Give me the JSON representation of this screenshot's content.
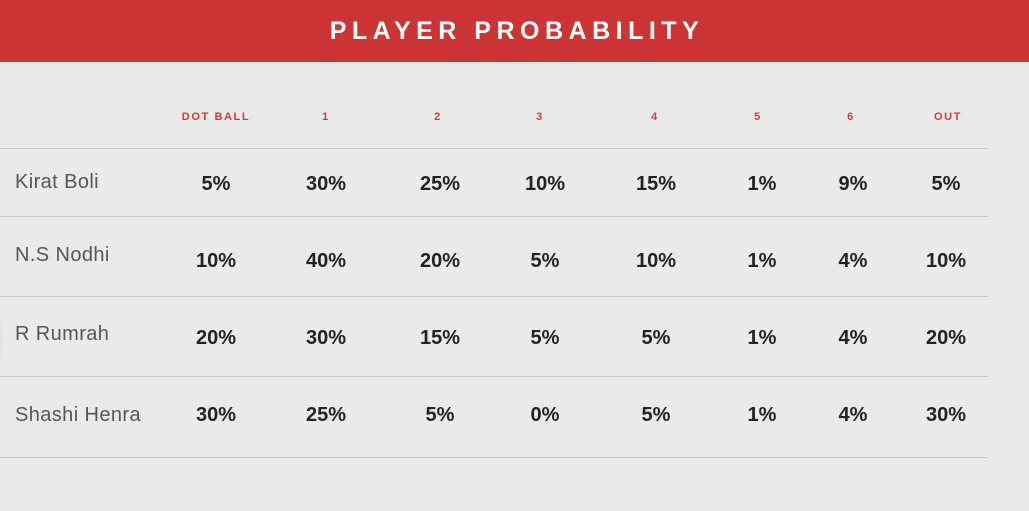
{
  "title": "PLAYER PROBABILITY",
  "columns": [
    "DOT BALL",
    "1",
    "2",
    "3",
    "4",
    "5",
    "6",
    "OUT"
  ],
  "rows": [
    {
      "name": "Kirat Boli",
      "values": [
        "5%",
        "30%",
        "25%",
        "10%",
        "15%",
        "1%",
        "9%",
        "5%"
      ]
    },
    {
      "name": "N.S Nodhi",
      "values": [
        "10%",
        "40%",
        "20%",
        "5%",
        "10%",
        "1%",
        "4%",
        "10%"
      ]
    },
    {
      "name": "R Rumrah",
      "values": [
        "20%",
        "30%",
        "15%",
        "5%",
        "5%",
        "1%",
        "4%",
        "20%"
      ]
    },
    {
      "name": "Shashi Henra",
      "values": [
        "30%",
        "25%",
        "5%",
        "0%",
        "5%",
        "1%",
        "4%",
        "30%"
      ]
    }
  ],
  "colors": {
    "title_bar": "#cc3436",
    "header_text": "#cf3a3a",
    "background": "#eaeaea"
  }
}
